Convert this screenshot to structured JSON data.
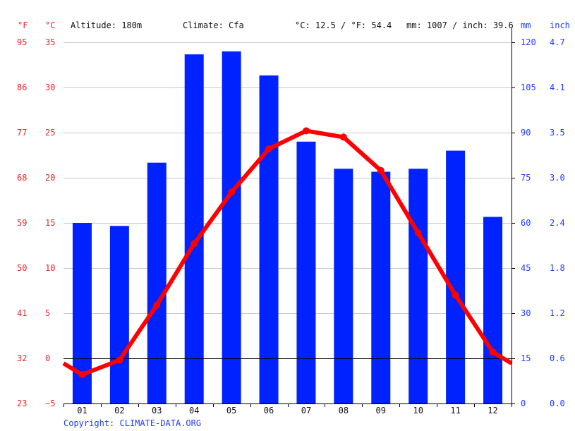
{
  "header": {
    "unit_f": "°F",
    "unit_c": "°C",
    "altitude": "Altitude: 180m",
    "climate": "Climate: Cfa",
    "avg_temp": "°C: 12.5 / °F: 54.4",
    "precip_total": "mm: 1007 / inch: 39.6",
    "unit_mm": "mm",
    "unit_inch": "inch"
  },
  "footer": {
    "copyright": "Copyright: CLIMATE-DATA.ORG"
  },
  "colors": {
    "temperature": "#ff0000",
    "precipitation": "#0022ff",
    "axis_temp": "#e8262b",
    "axis_precip": "#1f3bff",
    "grid": "#c8c8c8"
  },
  "chart_data": {
    "type": "bar+line",
    "title": "",
    "categories": [
      "01",
      "02",
      "03",
      "04",
      "05",
      "06",
      "07",
      "08",
      "09",
      "10",
      "11",
      "12"
    ],
    "series": [
      {
        "name": "Precipitation (mm)",
        "type": "bar",
        "axis": "right",
        "values": [
          60,
          59,
          80,
          116,
          117,
          109,
          87,
          78,
          77,
          78,
          84,
          62
        ]
      },
      {
        "name": "Temperature (°C)",
        "type": "line",
        "axis": "left",
        "values": [
          -1.8,
          -0.2,
          5.9,
          12.7,
          18.4,
          23.2,
          25.2,
          24.5,
          20.8,
          13.9,
          7.0,
          0.7
        ]
      }
    ],
    "left_axis_c": {
      "label": "°C",
      "ticks": [
        "35",
        "30",
        "25",
        "20",
        "15",
        "10",
        "5",
        "0",
        "-5"
      ],
      "range": [
        -5,
        35
      ]
    },
    "left_axis_f": {
      "label": "°F",
      "ticks": [
        "95",
        "86",
        "77",
        "68",
        "59",
        "50",
        "41",
        "32",
        "23"
      ]
    },
    "right_axis_mm": {
      "label": "mm",
      "ticks": [
        "120",
        "105",
        "90",
        "75",
        "60",
        "45",
        "30",
        "15",
        "0"
      ],
      "range": [
        0,
        120
      ]
    },
    "right_axis_inch": {
      "label": "inch",
      "ticks": [
        "4.7",
        "4.1",
        "3.5",
        "3.0",
        "2.4",
        "1.8",
        "1.2",
        "0.6",
        "0.0"
      ]
    },
    "grid": true,
    "annotations": [
      "Altitude: 180m",
      "Climate: Cfa",
      "°C: 12.5 / °F: 54.4",
      "mm: 1007 / inch: 39.6"
    ]
  }
}
